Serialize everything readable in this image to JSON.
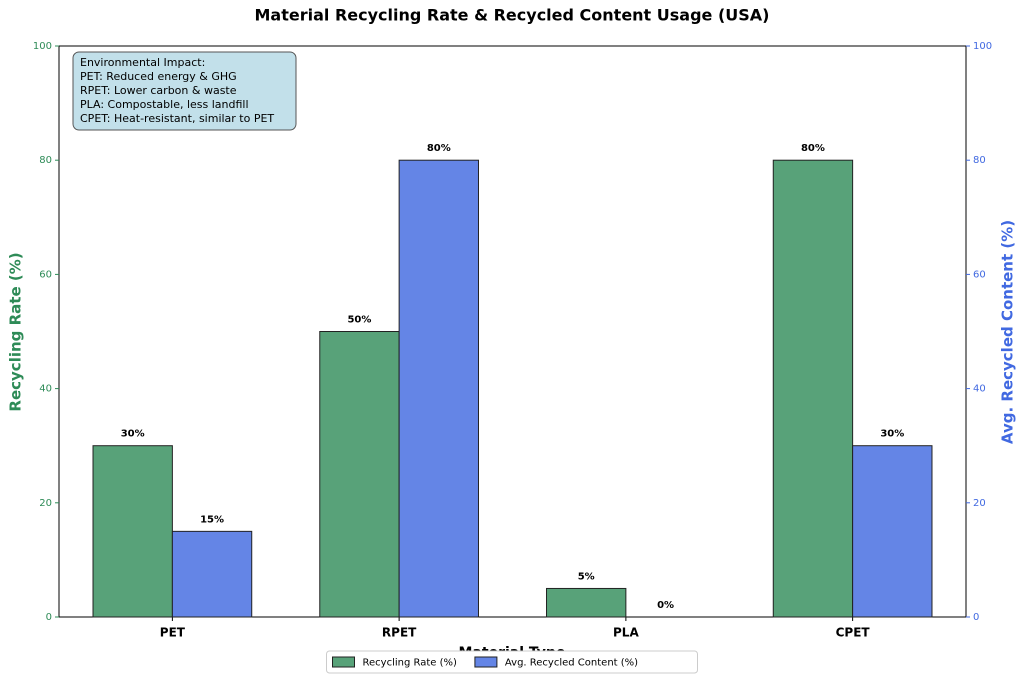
{
  "chart_data": {
    "type": "bar",
    "title": "Material Recycling Rate & Recycled Content Usage (USA)",
    "xlabel": "Material Type",
    "ylabel": "Recycling Rate (%)",
    "y2label": "Avg. Recycled Content (%)",
    "categories": [
      "PET",
      "RPET",
      "PLA",
      "CPET"
    ],
    "series": [
      {
        "name": "Recycling Rate (%)",
        "color": "#58a279",
        "values": [
          30,
          50,
          5,
          80
        ],
        "value_labels": [
          "30%",
          "50%",
          "5%",
          "80%"
        ]
      },
      {
        "name": "Avg. Recycled Content (%)",
        "color": "#6485e6",
        "axis": "y2",
        "values": [
          15,
          80,
          0,
          30
        ],
        "value_labels": [
          "15%",
          "80%",
          "0%",
          "30%"
        ]
      }
    ],
    "ylim": [
      0,
      100
    ],
    "yticks": [
      0,
      20,
      40,
      60,
      80,
      100
    ],
    "y2lim": [
      0,
      100
    ],
    "y2ticks": [
      0,
      20,
      40,
      60,
      80,
      100
    ],
    "annotation": [
      "Environmental Impact:",
      "PET: Reduced energy & GHG",
      "RPET: Lower carbon & waste",
      "PLA: Compostable, less landfill",
      "CPET: Heat-resistant, similar to PET"
    ],
    "legend": "lower center",
    "grid": false
  }
}
